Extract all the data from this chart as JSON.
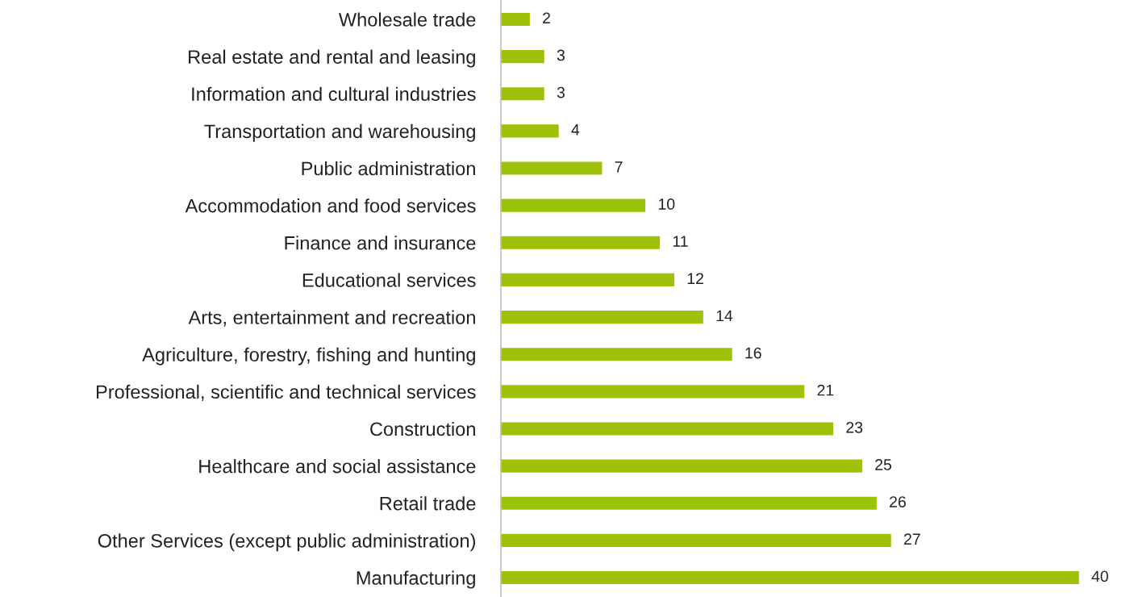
{
  "chart_data": {
    "type": "bar",
    "orientation": "horizontal",
    "data_labels": true,
    "grid": false,
    "legend": false,
    "color": "#9dc209",
    "categories": [
      "Wholesale trade",
      "Real estate and rental and leasing",
      "Information and cultural industries",
      "Transportation and warehousing",
      "Public administration",
      "Accommodation and food services",
      "Finance and insurance",
      "Educational services",
      "Arts, entertainment and recreation",
      "Agriculture, forestry, fishing and hunting",
      "Professional, scientific and technical services",
      "Construction",
      "Healthcare and social assistance",
      "Retail trade",
      "Other Services (except public administration)",
      "Manufacturing"
    ],
    "values": [
      2,
      3,
      3,
      4,
      7,
      10,
      11,
      12,
      14,
      16,
      21,
      23,
      25,
      26,
      27,
      40
    ]
  }
}
